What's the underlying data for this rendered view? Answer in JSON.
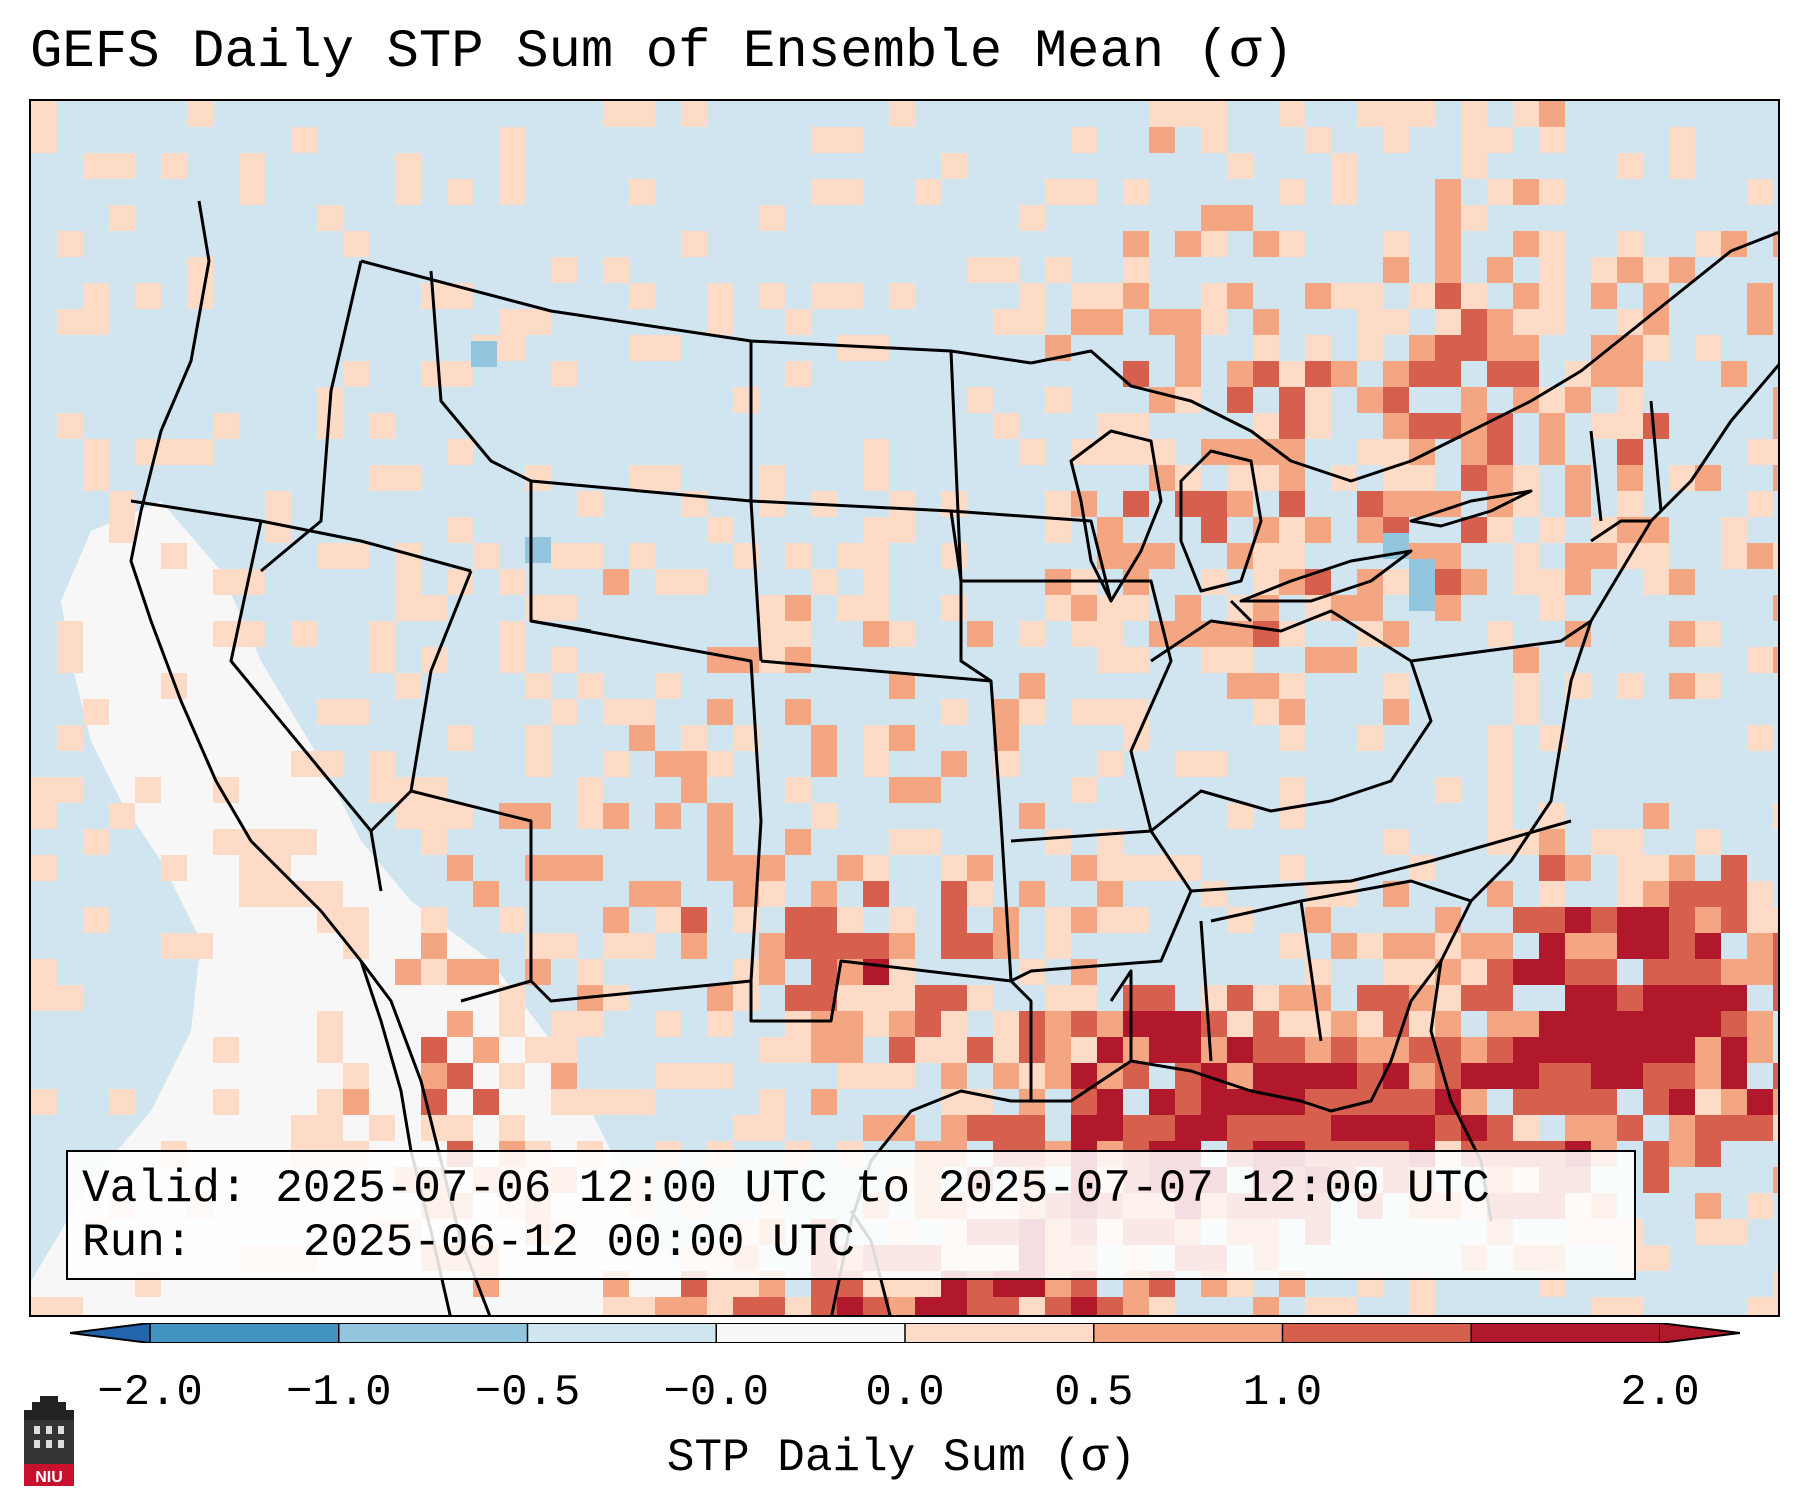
{
  "title": "GEFS Daily STP Sum of Ensemble Mean (σ)",
  "info": {
    "valid_label": "Valid:",
    "valid_value": "2025-07-06 12:00 UTC to 2025-07-07 12:00 UTC",
    "run_label": "Run:",
    "run_value": "2025-06-12 00:00 UTC"
  },
  "colorbar": {
    "label": "STP Daily Sum (σ)",
    "tick_labels": [
      "−2.0",
      "−1.0",
      "−0.5",
      "−0.0",
      "0.0",
      "0.5",
      "1.0",
      "2.0"
    ],
    "colors": [
      "#4393c3",
      "#92c5de",
      "#d1e5f0",
      "#f7f7f7",
      "#fddbc7",
      "#f4a582",
      "#d6604d",
      "#b2182b"
    ],
    "under_color": "#2166ac",
    "over_color": "#b2182b"
  },
  "map": {
    "projection": "Lambert conformal (CONUS)",
    "background_color": "#d1e5f0",
    "legend_colors": {
      "neutral": "#f7f7f7",
      "light_pos": "#fddbc7",
      "mid_pos": "#f4a582",
      "high_pos": "#d6604d",
      "max_pos": "#b2182b",
      "light_neg": "#92c5de"
    }
  },
  "logo": {
    "text": "NIU",
    "icon": "niu-castle-icon"
  }
}
